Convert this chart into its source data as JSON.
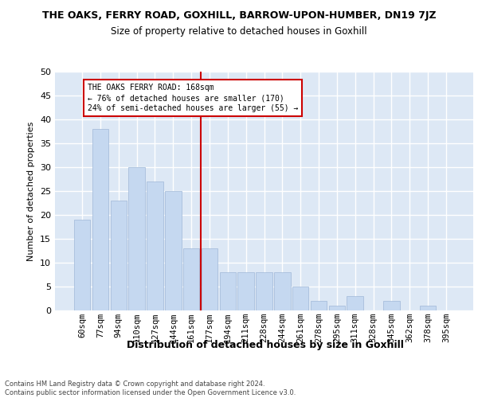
{
  "title": "THE OAKS, FERRY ROAD, GOXHILL, BARROW-UPON-HUMBER, DN19 7JZ",
  "subtitle": "Size of property relative to detached houses in Goxhill",
  "xlabel": "Distribution of detached houses by size in Goxhill",
  "ylabel": "Number of detached properties",
  "categories": [
    "60sqm",
    "77sqm",
    "94sqm",
    "110sqm",
    "127sqm",
    "144sqm",
    "161sqm",
    "177sqm",
    "194sqm",
    "211sqm",
    "228sqm",
    "244sqm",
    "261sqm",
    "278sqm",
    "295sqm",
    "311sqm",
    "328sqm",
    "345sqm",
    "362sqm",
    "378sqm",
    "395sqm"
  ],
  "values": [
    19,
    38,
    23,
    30,
    27,
    25,
    13,
    13,
    8,
    8,
    8,
    8,
    5,
    2,
    1,
    3,
    0,
    2,
    0,
    1,
    0
  ],
  "bar_color": "#c5d8f0",
  "bar_edge_color": "#a0b8d8",
  "bg_color": "#dde8f5",
  "grid_color": "#ffffff",
  "annotation_line_color": "#cc0000",
  "annotation_text": "THE OAKS FERRY ROAD: 168sqm\n← 76% of detached houses are smaller (170)\n24% of semi-detached houses are larger (55) →",
  "annotation_box_color": "#ffffff",
  "annotation_box_edge": "#cc0000",
  "footer_text": "Contains HM Land Registry data © Crown copyright and database right 2024.\nContains public sector information licensed under the Open Government Licence v3.0.",
  "ylim": [
    0,
    50
  ],
  "yticks": [
    0,
    5,
    10,
    15,
    20,
    25,
    30,
    35,
    40,
    45,
    50
  ]
}
